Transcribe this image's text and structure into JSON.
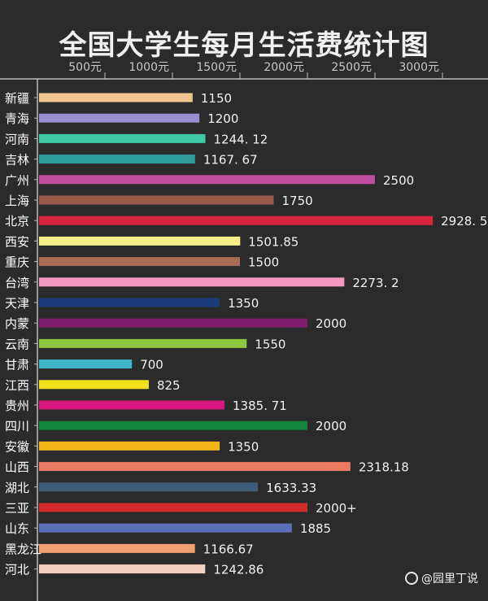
{
  "page": {
    "title": "全国大学生每月生活费统计图",
    "watermark": "@园里丁说"
  },
  "chart_data": {
    "type": "bar",
    "orientation": "horizontal",
    "title": "全国大学生每月生活费统计图",
    "xlabel": "",
    "ylabel": "",
    "xlim": [
      0,
      3000
    ],
    "axis_position": "top",
    "tick_values": [
      500,
      1000,
      1500,
      2000,
      2500,
      3000
    ],
    "tick_labels": [
      "500元",
      "1000元",
      "1500元",
      "2000元",
      "2500元",
      "3000元"
    ],
    "categories": [
      "新疆",
      "青海",
      "河南",
      "吉林",
      "广州",
      "上海",
      "北京",
      "西安",
      "重庆",
      "台湾",
      "天津",
      "内蒙",
      "云南",
      "甘肃",
      "江西",
      "贵州",
      "四川",
      "安徽",
      "山西",
      "湖北",
      "三亚",
      "山东",
      "黑龙江",
      "河北"
    ],
    "values": [
      1150,
      1200,
      1244.12,
      1167.67,
      2500,
      1750,
      2928.5,
      1501.85,
      1500,
      2273.2,
      1350,
      2000,
      1550,
      700,
      825,
      1385.71,
      2000,
      1350,
      2318.18,
      1633.33,
      2000,
      1885,
      1166.67,
      1242.86
    ],
    "value_labels": [
      "1150",
      "1200",
      "1244. 12",
      "1167. 67",
      "2500",
      "1750",
      "2928. 5",
      "1501.85",
      "1500",
      "2273. 2",
      "1350",
      "2000",
      "1550",
      "700",
      "825",
      "1385. 71",
      "2000",
      "1350",
      "2318.18",
      "1633.33",
      "2000+",
      "1885",
      "1166.67",
      "1242.86"
    ],
    "colors": [
      "#f2c48e",
      "#9a8fd0",
      "#3fc9a2",
      "#2f9d9b",
      "#bf4d9e",
      "#9b5a48",
      "#d8243f",
      "#f7f08a",
      "#a86d52",
      "#f49ac0",
      "#1a3a7a",
      "#7e1f6d",
      "#8dc63f",
      "#3fb6c8",
      "#f2e01a",
      "#d8187f",
      "#12843e",
      "#f2b51a",
      "#ea7b62",
      "#3f5d7a",
      "#d32a2a",
      "#5b6fb8",
      "#f0a070",
      "#f3d0c0"
    ],
    "grid": true
  }
}
